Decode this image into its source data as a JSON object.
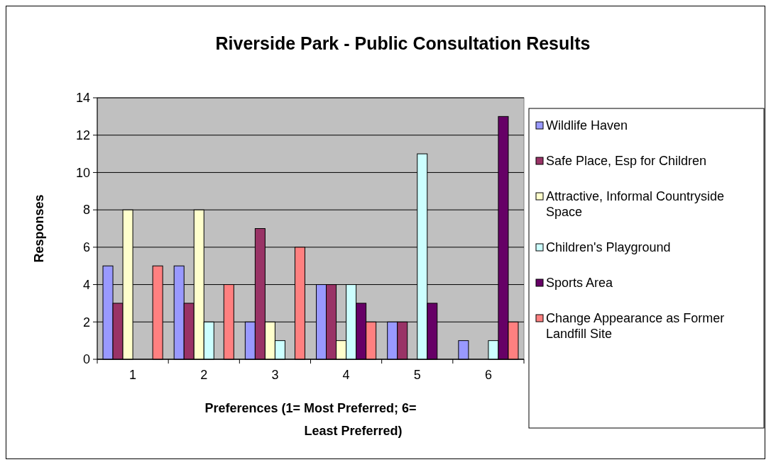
{
  "chart_data": {
    "type": "bar",
    "title": "Riverside Park - Public Consultation Results",
    "xlabel": "Preferences (1= Most Preferred; 6= Least Preferred)",
    "ylabel": "Responses",
    "categories": [
      "1",
      "2",
      "3",
      "4",
      "5",
      "6"
    ],
    "series": [
      {
        "name": "Wildlife Haven",
        "color": "#9999ff",
        "values": [
          5,
          5,
          2,
          4,
          2,
          1
        ]
      },
      {
        "name": "Safe Place, Esp for Children",
        "color": "#993366",
        "values": [
          3,
          3,
          7,
          4,
          2,
          0
        ]
      },
      {
        "name": "Attractive, Informal Countryside Space",
        "color": "#ffffcc",
        "values": [
          8,
          8,
          2,
          1,
          0,
          0
        ]
      },
      {
        "name": "Children's Playground",
        "color": "#ccffff",
        "values": [
          0,
          2,
          1,
          4,
          11,
          1
        ]
      },
      {
        "name": "Sports Area",
        "color": "#660066",
        "values": [
          0,
          0,
          0,
          3,
          3,
          13
        ]
      },
      {
        "name": "Change Appearance as Former Landfill Site",
        "color": "#ff8080",
        "values": [
          5,
          4,
          6,
          2,
          0,
          2
        ]
      }
    ],
    "ylim": [
      0,
      14
    ],
    "yticks": [
      0,
      2,
      4,
      6,
      8,
      10,
      12,
      14
    ],
    "grid": "y",
    "legend": "right"
  }
}
